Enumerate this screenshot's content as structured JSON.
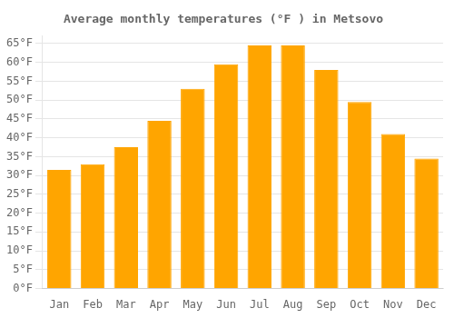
{
  "chart_data": {
    "type": "bar",
    "title": "Average monthly temperatures (°F ) in Metsovo",
    "categories": [
      "Jan",
      "Feb",
      "Mar",
      "Apr",
      "May",
      "Jun",
      "Jul",
      "Aug",
      "Sep",
      "Oct",
      "Nov",
      "Dec"
    ],
    "values": [
      31.5,
      33.0,
      37.5,
      44.5,
      53.0,
      59.5,
      64.5,
      64.5,
      58.0,
      49.5,
      41.0,
      34.5
    ],
    "color": "#FFA500",
    "ylim": [
      0,
      67
    ],
    "yticks": [
      {
        "value": 0,
        "label": "0°F"
      },
      {
        "value": 5,
        "label": "5°F"
      },
      {
        "value": 10,
        "label": "10°F"
      },
      {
        "value": 15,
        "label": "15°F"
      },
      {
        "value": 20,
        "label": "20°F"
      },
      {
        "value": 25,
        "label": "25°F"
      },
      {
        "value": 30,
        "label": "30°F"
      },
      {
        "value": 35,
        "label": "35°F"
      },
      {
        "value": 40,
        "label": "40°F"
      },
      {
        "value": 45,
        "label": "45°F"
      },
      {
        "value": 50,
        "label": "50°F"
      },
      {
        "value": 55,
        "label": "55°F"
      },
      {
        "value": 60,
        "label": "60°F"
      },
      {
        "value": 65,
        "label": "65°F"
      }
    ],
    "grid": true
  }
}
